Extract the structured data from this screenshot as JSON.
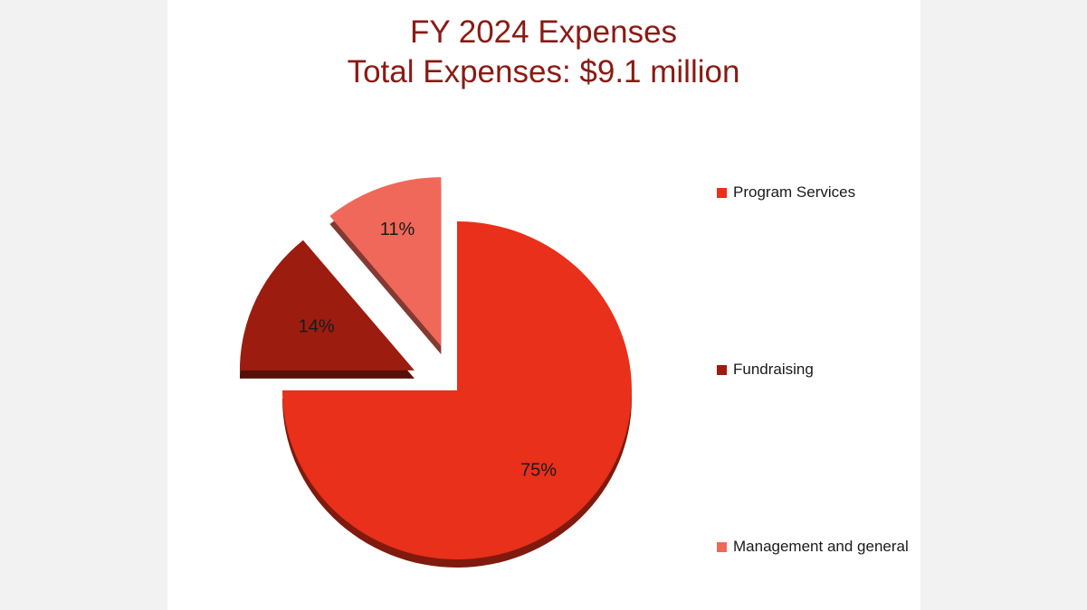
{
  "chart_data": {
    "type": "pie",
    "title": "FY 2024 Expenses",
    "subtitle": "Total Expenses: $9.1 million",
    "categories": [
      "Program Services",
      "Fundraising",
      "Management and general"
    ],
    "values": [
      75,
      14,
      11
    ],
    "data_labels": [
      "75%",
      "14%",
      "11%"
    ],
    "colors": [
      "#e8301a",
      "#9c1c10",
      "#f0685a"
    ],
    "exploded": [
      false,
      true,
      true
    ],
    "style": "3d",
    "legend_position": "right"
  }
}
